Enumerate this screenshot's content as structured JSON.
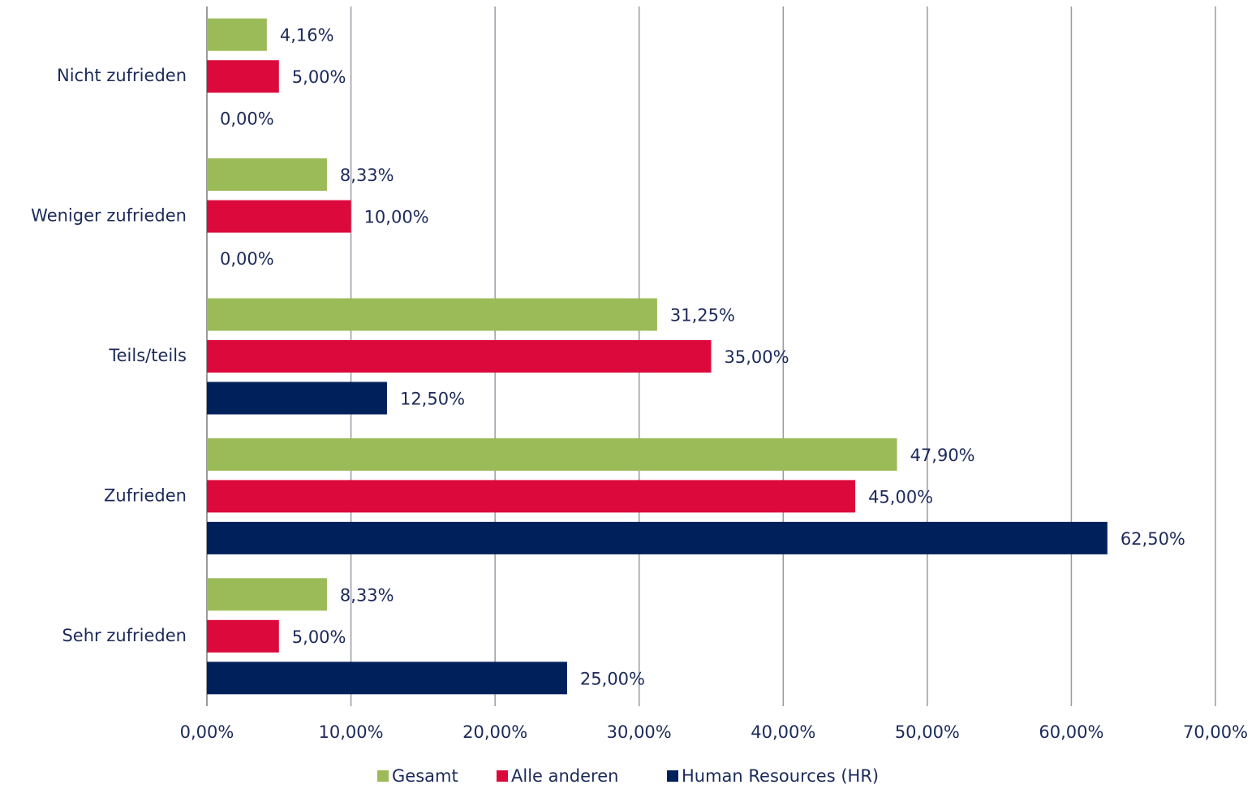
{
  "chart_data": {
    "type": "hbar",
    "categories": [
      "Nicht zufrieden",
      "Weniger zufrieden",
      "Teils/teils",
      "Zufrieden",
      "Sehr zufrieden"
    ],
    "series": [
      {
        "name": "Gesamt",
        "color": "#9bbb59",
        "values": [
          4.16,
          8.33,
          31.25,
          47.9,
          8.33
        ],
        "value_labels": [
          "4,16%",
          "8,33%",
          "31,25%",
          "47,90%",
          "8,33%"
        ]
      },
      {
        "name": "Alle anderen",
        "color": "#dc0a3c",
        "values": [
          5,
          10,
          35,
          45,
          5
        ],
        "value_labels": [
          "5,00%",
          "10,00%",
          "35,00%",
          "45,00%",
          "5,00%"
        ]
      },
      {
        "name": "Human Resources (HR)",
        "color": "#00205b",
        "values": [
          0,
          0,
          12.5,
          62.5,
          25
        ],
        "value_labels": [
          "0,00%",
          "0,00%",
          "12,50%",
          "62,50%",
          "25,00%"
        ]
      }
    ],
    "xlim": [
      0,
      70
    ],
    "xticks": [
      {
        "value": 0,
        "label": "0,00%"
      },
      {
        "value": 10,
        "label": "10,00%"
      },
      {
        "value": 20,
        "label": "20,00%"
      },
      {
        "value": 30,
        "label": "30,00%"
      },
      {
        "value": 40,
        "label": "40,00%"
      },
      {
        "value": 50,
        "label": "50,00%"
      },
      {
        "value": 60,
        "label": "60,00%"
      },
      {
        "value": 70,
        "label": "70,00%"
      }
    ],
    "grid": true,
    "legend": "bottom"
  }
}
